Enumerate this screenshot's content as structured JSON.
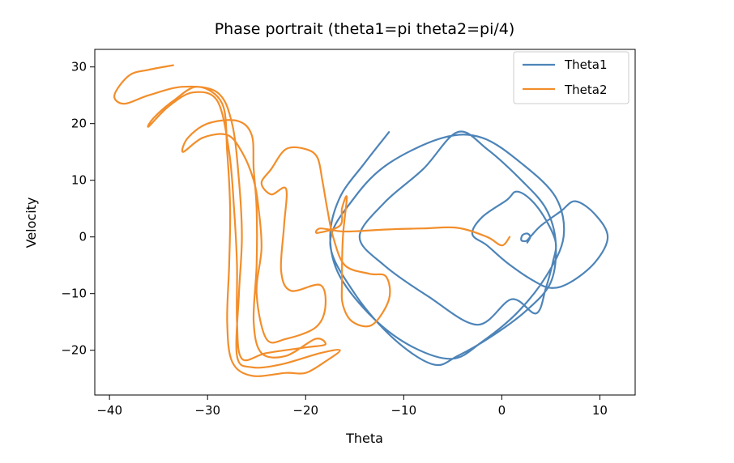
{
  "chart_data": {
    "type": "line",
    "title": "Phase portrait (theta1=pi theta2=pi/4)",
    "xlabel": "Theta",
    "ylabel": "Velocity",
    "xlim": [
      -41.5,
      13.6
    ],
    "ylim": [
      -27.9,
      33.1
    ],
    "xticks": [
      {
        "value": -40,
        "label": "−40"
      },
      {
        "value": -30,
        "label": "−30"
      },
      {
        "value": -20,
        "label": "−20"
      },
      {
        "value": -10,
        "label": "−10"
      },
      {
        "value": 0,
        "label": "0"
      },
      {
        "value": 10,
        "label": "10"
      }
    ],
    "yticks": [
      {
        "value": -20,
        "label": "−20"
      },
      {
        "value": -10,
        "label": "−10"
      },
      {
        "value": 0,
        "label": "0"
      },
      {
        "value": 10,
        "label": "10"
      },
      {
        "value": 20,
        "label": "20"
      },
      {
        "value": 30,
        "label": "30"
      }
    ],
    "grid": false,
    "legend_position": "top-right",
    "series": [
      {
        "name": "Theta1",
        "color": "#4d84b8",
        "points": [
          [
            2.6,
            -1.0
          ],
          [
            2.9,
            0.0
          ],
          [
            2.6,
            0.6
          ],
          [
            2.1,
            0.3
          ],
          [
            2.0,
            -0.6
          ],
          [
            2.5,
            -0.7
          ],
          [
            2.9,
            0.0
          ],
          [
            4.0,
            2.0
          ],
          [
            6.0,
            4.5
          ],
          [
            7.5,
            6.3
          ],
          [
            9.5,
            4.0
          ],
          [
            10.8,
            0.0
          ],
          [
            9.5,
            -4.5
          ],
          [
            7.0,
            -8.0
          ],
          [
            5.0,
            -9.0
          ],
          [
            3.0,
            -7.5
          ],
          [
            0.5,
            -4.5
          ],
          [
            -1.5,
            -1.5
          ],
          [
            -3.0,
            0.5
          ],
          [
            -2.0,
            3.5
          ],
          [
            0.5,
            6.5
          ],
          [
            1.5,
            8.0
          ],
          [
            3.0,
            6.5
          ],
          [
            4.5,
            3.0
          ],
          [
            5.5,
            -1.0
          ],
          [
            5.2,
            -4.5
          ],
          [
            4.5,
            -9.0
          ],
          [
            3.5,
            -13.5
          ],
          [
            1.0,
            -11.0
          ],
          [
            -2.5,
            -15.5
          ],
          [
            -7.5,
            -10.5
          ],
          [
            -12.0,
            -5.0
          ],
          [
            -14.5,
            0.0
          ],
          [
            -12.0,
            6.0
          ],
          [
            -8.0,
            12.0
          ],
          [
            -4.5,
            18.5
          ],
          [
            -1.5,
            15.5
          ],
          [
            2.0,
            10.0
          ],
          [
            4.5,
            5.0
          ],
          [
            5.5,
            -1.0
          ],
          [
            5.0,
            -8.0
          ],
          [
            2.5,
            -13.0
          ],
          [
            -1.0,
            -17.5
          ],
          [
            -4.5,
            -21.0
          ],
          [
            -7.0,
            -22.5
          ],
          [
            -11.0,
            -18.0
          ],
          [
            -15.0,
            -10.0
          ],
          [
            -17.5,
            -1.0
          ],
          [
            -15.0,
            7.0
          ],
          [
            -11.5,
            13.0
          ],
          [
            -6.0,
            17.5
          ],
          [
            -2.0,
            17.5
          ],
          [
            2.0,
            13.0
          ],
          [
            5.5,
            7.0
          ],
          [
            6.3,
            0.0
          ],
          [
            4.5,
            -7.0
          ],
          [
            1.5,
            -13.5
          ],
          [
            -2.0,
            -18.5
          ],
          [
            -5.0,
            -21.5
          ],
          [
            -9.0,
            -19.5
          ],
          [
            -13.0,
            -14.5
          ],
          [
            -16.5,
            -7.0
          ],
          [
            -17.5,
            0.0
          ],
          [
            -16.5,
            7.0
          ],
          [
            -14.0,
            13.0
          ],
          [
            -11.5,
            18.5
          ]
        ]
      },
      {
        "name": "Theta2",
        "color": "#f28e2b",
        "points": [
          [
            0.8,
            0.0
          ],
          [
            0.0,
            -1.5
          ],
          [
            -1.5,
            0.0
          ],
          [
            -4.5,
            1.6
          ],
          [
            -8.0,
            1.5
          ],
          [
            -12.0,
            1.3
          ],
          [
            -15.0,
            1.0
          ],
          [
            -16.5,
            1.0
          ],
          [
            -18.5,
            1.5
          ],
          [
            -18.8,
            0.7
          ],
          [
            -16.5,
            2.0
          ],
          [
            -16.3,
            5.0
          ],
          [
            -15.8,
            7.0
          ],
          [
            -16.2,
            0.0
          ],
          [
            -16.3,
            -8.0
          ],
          [
            -16.2,
            -12.0
          ],
          [
            -15.2,
            -15.0
          ],
          [
            -13.2,
            -15.5
          ],
          [
            -11.5,
            -11.0
          ],
          [
            -11.8,
            -7.0
          ],
          [
            -13.5,
            -6.5
          ],
          [
            -16.0,
            -5.0
          ],
          [
            -17.2,
            0.0
          ],
          [
            -17.8,
            5.0
          ],
          [
            -18.3,
            10.0
          ],
          [
            -18.8,
            14.0
          ],
          [
            -20.0,
            15.5
          ],
          [
            -22.0,
            15.5
          ],
          [
            -23.5,
            12.0
          ],
          [
            -24.5,
            9.5
          ],
          [
            -23.5,
            7.5
          ],
          [
            -22.0,
            8.5
          ],
          [
            -22.2,
            2.0
          ],
          [
            -22.5,
            -6.0
          ],
          [
            -21.5,
            -9.5
          ],
          [
            -18.5,
            -8.5
          ],
          [
            -18.0,
            -12.5
          ],
          [
            -19.0,
            -16.0
          ],
          [
            -22.0,
            -18.0
          ],
          [
            -24.0,
            -18.0
          ],
          [
            -25.0,
            -10.0
          ],
          [
            -24.5,
            -2.0
          ],
          [
            -24.8,
            5.0
          ],
          [
            -25.3,
            10.0
          ],
          [
            -26.5,
            15.0
          ],
          [
            -28.0,
            18.0
          ],
          [
            -30.5,
            17.5
          ],
          [
            -32.5,
            15.0
          ],
          [
            -32.0,
            17.5
          ],
          [
            -30.0,
            20.0
          ],
          [
            -27.0,
            20.5
          ],
          [
            -25.5,
            18.0
          ],
          [
            -25.3,
            12.0
          ],
          [
            -25.0,
            5.0
          ],
          [
            -25.0,
            -5.0
          ],
          [
            -25.3,
            -15.0
          ],
          [
            -24.5,
            -20.5
          ],
          [
            -22.0,
            -21.0
          ],
          [
            -19.0,
            -18.0
          ],
          [
            -18.0,
            -19.0
          ],
          [
            -20.0,
            -19.5
          ],
          [
            -24.0,
            -20.5
          ],
          [
            -26.5,
            -21.5
          ],
          [
            -27.0,
            -15.0
          ],
          [
            -27.0,
            -5.0
          ],
          [
            -27.3,
            5.0
          ],
          [
            -27.8,
            15.0
          ],
          [
            -29.0,
            24.0
          ],
          [
            -31.5,
            25.5
          ],
          [
            -34.0,
            23.0
          ],
          [
            -36.0,
            19.5
          ],
          [
            -35.5,
            21.0
          ],
          [
            -33.5,
            24.0
          ],
          [
            -31.0,
            26.5
          ],
          [
            -28.5,
            23.5
          ],
          [
            -28.0,
            15.0
          ],
          [
            -27.7,
            5.0
          ],
          [
            -27.8,
            -5.0
          ],
          [
            -28.0,
            -15.0
          ],
          [
            -27.5,
            -22.0
          ],
          [
            -25.5,
            -24.5
          ],
          [
            -22.0,
            -24.0
          ],
          [
            -20.0,
            -24.0
          ],
          [
            -18.0,
            -22.0
          ],
          [
            -16.5,
            -20.0
          ],
          [
            -18.5,
            -20.5
          ],
          [
            -22.5,
            -22.5
          ],
          [
            -25.5,
            -23.0
          ],
          [
            -27.0,
            -21.0
          ],
          [
            -26.8,
            -10.0
          ],
          [
            -26.5,
            0.0
          ],
          [
            -26.8,
            10.0
          ],
          [
            -27.5,
            20.0
          ],
          [
            -29.0,
            25.5
          ],
          [
            -32.5,
            26.5
          ],
          [
            -36.0,
            25.0
          ],
          [
            -38.5,
            23.5
          ],
          [
            -39.5,
            25.0
          ],
          [
            -38.0,
            28.5
          ],
          [
            -36.0,
            29.5
          ],
          [
            -33.5,
            30.3
          ]
        ]
      }
    ]
  }
}
